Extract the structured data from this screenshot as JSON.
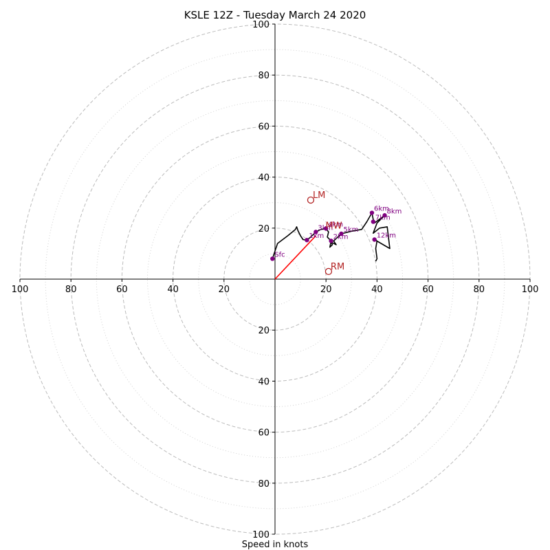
{
  "chart_data": {
    "type": "hodograph",
    "title": "KSLE 12Z - Tuesday March 24 2020",
    "xlabel": "Speed in knots",
    "rmax": 100,
    "ring_major": [
      20,
      40,
      60,
      80,
      100
    ],
    "ring_minor": [
      10,
      30,
      50,
      70,
      90
    ],
    "x_tick_labels": [
      "100",
      "80",
      "60",
      "40",
      "20",
      "20",
      "40",
      "60",
      "80",
      "100"
    ],
    "x_tick_values": [
      -100,
      -80,
      -60,
      -40,
      -20,
      20,
      40,
      60,
      80,
      100
    ],
    "y_tick_labels": [
      "100",
      "80",
      "60",
      "40",
      "20",
      "20",
      "40",
      "60",
      "80",
      "100"
    ],
    "y_tick_values": [
      100,
      80,
      60,
      40,
      20,
      -20,
      -40,
      -60,
      -80,
      -100
    ],
    "grid": true,
    "colors": {
      "trace": "#000000",
      "height_points": "#800080",
      "motion": "#b22222",
      "shear_vector": "#ff0000",
      "grid": "#bbbbbb",
      "axis": "#000000"
    },
    "trace": [
      [
        -1,
        8
      ],
      [
        1,
        14
      ],
      [
        5,
        17
      ],
      [
        8,
        19.5
      ],
      [
        8.5,
        20.5
      ],
      [
        9,
        19
      ],
      [
        10,
        17
      ],
      [
        11,
        15.5
      ],
      [
        12.5,
        15.3
      ],
      [
        14,
        16.5
      ],
      [
        16,
        18.5
      ],
      [
        18,
        19.5
      ],
      [
        20,
        19.8
      ],
      [
        21,
        18.5
      ],
      [
        20.5,
        16.5
      ],
      [
        22,
        15
      ],
      [
        21.5,
        12.5
      ],
      [
        22.5,
        13.5
      ],
      [
        22,
        14.5
      ],
      [
        24,
        13.5
      ],
      [
        23,
        15
      ],
      [
        26,
        17.8
      ],
      [
        30,
        18.8
      ],
      [
        34,
        19.5
      ],
      [
        36,
        22.5
      ],
      [
        38,
        26
      ],
      [
        38.5,
        23.5
      ],
      [
        39,
        22
      ],
      [
        41,
        23.5
      ],
      [
        43,
        25
      ],
      [
        40,
        22
      ],
      [
        38.5,
        18
      ],
      [
        41,
        20
      ],
      [
        44,
        20.5
      ],
      [
        45,
        12
      ],
      [
        39,
        15.5
      ],
      [
        40,
        15
      ],
      [
        39.5,
        12
      ],
      [
        40,
        8
      ],
      [
        39.5,
        7
      ]
    ],
    "heights": [
      {
        "label": "Sfc",
        "u": -1,
        "v": 8
      },
      {
        "label": "1km",
        "u": 12.5,
        "v": 15.3
      },
      {
        "label": "2km",
        "u": 22,
        "v": 15
      },
      {
        "label": "3km",
        "u": 16,
        "v": 18.5
      },
      {
        "label": "4km",
        "u": 20,
        "v": 19.8
      },
      {
        "label": "5km",
        "u": 26,
        "v": 17.8
      },
      {
        "label": "6km",
        "u": 38,
        "v": 26
      },
      {
        "label": "7km",
        "u": 38.5,
        "v": 22.5
      },
      {
        "label": "8km",
        "u": 43,
        "v": 25
      },
      {
        "label": "12km",
        "u": 39,
        "v": 15.5
      }
    ],
    "motion_points": [
      {
        "label": "LM",
        "u": 14,
        "v": 31
      },
      {
        "label": "RM",
        "u": 21,
        "v": 3
      },
      {
        "label": "MW",
        "u": 19,
        "v": 19
      }
    ],
    "shear_vector": {
      "u0": 0,
      "v0": 0,
      "u1": 16,
      "v1": 17
    }
  }
}
